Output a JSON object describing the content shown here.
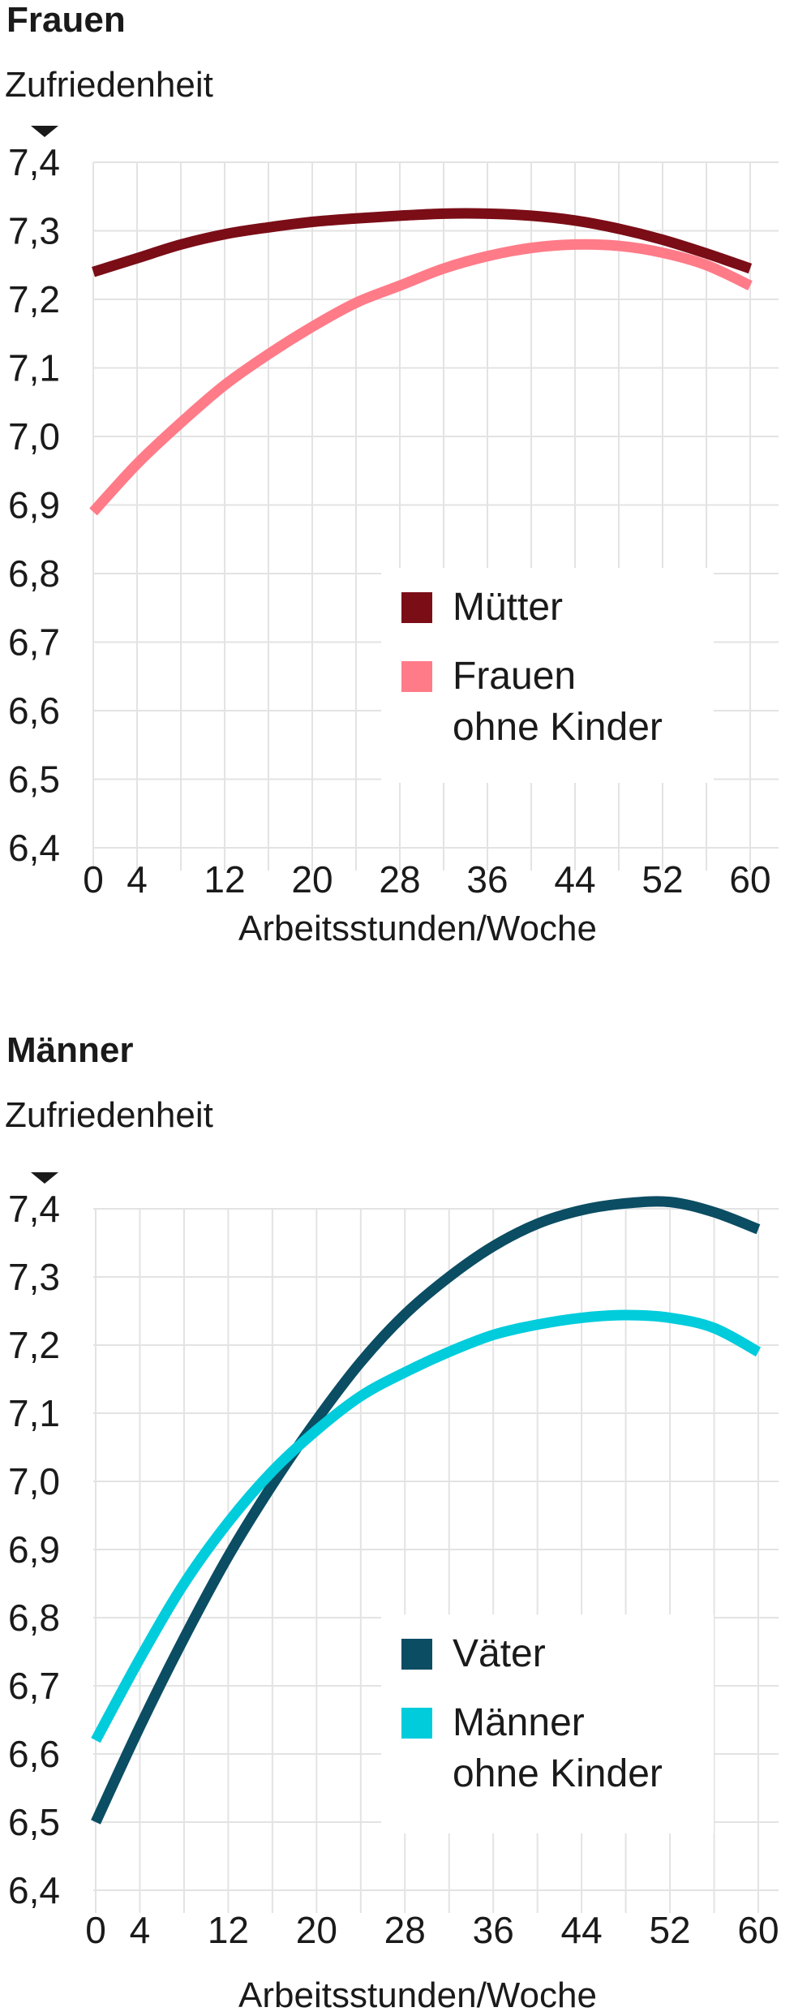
{
  "chart_data": [
    {
      "type": "line",
      "title": "Frauen",
      "ylabel": "Zufriedenheit",
      "xlabel": "Arbeitsstunden/Woche",
      "xlim": [
        0,
        60
      ],
      "ylim": [
        6.4,
        7.4
      ],
      "xticks": [
        "0",
        "4",
        "12",
        "20",
        "28",
        "36",
        "44",
        "52",
        "60"
      ],
      "yticks": [
        "7,4",
        "7,3",
        "7,2",
        "7,1",
        "7,0",
        "6,9",
        "6,8",
        "6,7",
        "6,6",
        "6,5",
        "6,4"
      ],
      "grid": true,
      "legend_position": "lower-right",
      "x": [
        0,
        4,
        8,
        12,
        16,
        20,
        24,
        28,
        32,
        36,
        40,
        44,
        48,
        52,
        56,
        60
      ],
      "series": [
        {
          "name": "Mütter",
          "color": "#7b0d17",
          "values": [
            7.24,
            7.26,
            7.28,
            7.295,
            7.305,
            7.313,
            7.318,
            7.322,
            7.325,
            7.325,
            7.322,
            7.315,
            7.303,
            7.287,
            7.267,
            7.245
          ]
        },
        {
          "name": "Frauen\nohne Kinder",
          "color": "#ff7b88",
          "values": [
            6.89,
            6.96,
            7.02,
            7.075,
            7.12,
            7.16,
            7.195,
            7.22,
            7.245,
            7.263,
            7.275,
            7.28,
            7.278,
            7.268,
            7.25,
            7.22
          ]
        }
      ]
    },
    {
      "type": "line",
      "title": "Männer",
      "ylabel": "Zufriedenheit",
      "xlabel": "Arbeitsstunden/Woche",
      "xlim": [
        0,
        60
      ],
      "ylim": [
        6.4,
        7.4
      ],
      "xticks": [
        "0",
        "4",
        "12",
        "20",
        "28",
        "36",
        "44",
        "52",
        "60"
      ],
      "yticks": [
        "7,4",
        "7,3",
        "7,2",
        "7,1",
        "7,0",
        "6,9",
        "6,8",
        "6,7",
        "6,6",
        "6,5",
        "6,4"
      ],
      "grid": true,
      "legend_position": "lower-right",
      "x": [
        0,
        4,
        8,
        12,
        16,
        20,
        24,
        28,
        32,
        36,
        40,
        44,
        48,
        52,
        56,
        60
      ],
      "series": [
        {
          "name": "Väter",
          "color": "#0b4d63",
          "values": [
            6.5,
            6.64,
            6.77,
            6.89,
            6.995,
            7.09,
            7.175,
            7.245,
            7.3,
            7.345,
            7.378,
            7.398,
            7.408,
            7.41,
            7.395,
            7.37
          ]
        },
        {
          "name": "Männer\nohne Kinder",
          "color": "#00ccdc",
          "values": [
            6.62,
            6.74,
            6.85,
            6.94,
            7.015,
            7.075,
            7.125,
            7.16,
            7.19,
            7.215,
            7.23,
            7.24,
            7.244,
            7.24,
            7.225,
            7.19
          ]
        }
      ]
    }
  ]
}
